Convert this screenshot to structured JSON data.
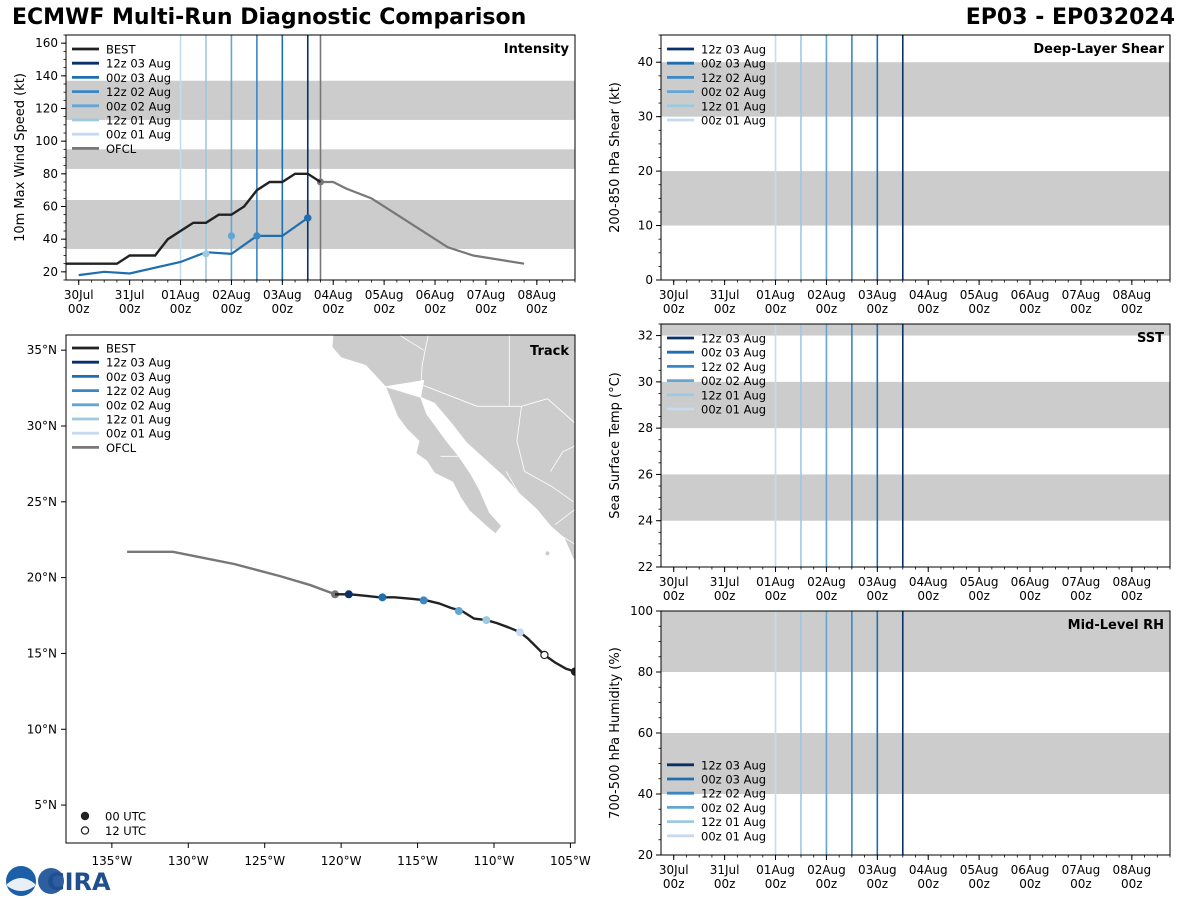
{
  "header": {
    "title": "ECMWF Multi-Run Diagnostic Comparison",
    "storm": "EP03 - EP032024"
  },
  "logo": {
    "text": "CIRA"
  },
  "time_axis": {
    "ticks": [
      {
        "day": 0,
        "label": "30Jul"
      },
      {
        "day": 1,
        "label": "31Jul"
      },
      {
        "day": 2,
        "label": "01Aug"
      },
      {
        "day": 3,
        "label": "02Aug"
      },
      {
        "day": 4,
        "label": "03Aug"
      },
      {
        "day": 5,
        "label": "04Aug"
      },
      {
        "day": 6,
        "label": "05Aug"
      },
      {
        "day": 7,
        "label": "06Aug"
      },
      {
        "day": 8,
        "label": "07Aug"
      },
      {
        "day": 9,
        "label": "08Aug"
      }
    ],
    "hour_label": "00z",
    "range_days": [
      -0.25,
      9.75
    ],
    "day0": "30Jul 00z"
  },
  "runs": [
    {
      "name": "12z 03 Aug",
      "init_day": 4.5,
      "color": "#08306b"
    },
    {
      "name": "00z 03 Aug",
      "init_day": 4.0,
      "color": "#1f6fb0"
    },
    {
      "name": "12z 02 Aug",
      "init_day": 3.5,
      "color": "#3a87c4"
    },
    {
      "name": "00z 02 Aug",
      "init_day": 3.0,
      "color": "#62a6d6"
    },
    {
      "name": "12z 01 Aug",
      "init_day": 2.5,
      "color": "#9ecae1"
    },
    {
      "name": "00z 01 Aug",
      "init_day": 2.0,
      "color": "#c6dbef"
    }
  ],
  "best_label": "BEST",
  "ofcl_label": "OFCL",
  "chart_data": [
    {
      "id": "intensity",
      "type": "line",
      "title": "Intensity",
      "ylabel": "10m Max Wind Speed (kt)",
      "ylim": [
        15,
        165
      ],
      "yticks": [
        20,
        40,
        60,
        80,
        100,
        120,
        140,
        160
      ],
      "shading": [
        [
          34,
          64
        ],
        [
          83,
          95
        ],
        [
          113,
          137
        ]
      ],
      "best": {
        "x": [
          -0.25,
          0.75,
          1.0,
          1.5,
          1.75,
          2.0,
          2.25,
          2.5,
          2.75,
          3.0,
          3.25,
          3.5,
          3.75,
          4.0,
          4.25,
          4.5,
          4.75
        ],
        "y": [
          25,
          25,
          30,
          30,
          40,
          45,
          50,
          50,
          55,
          55,
          60,
          70,
          75,
          75,
          80,
          80,
          75
        ]
      },
      "run_tracks": [
        {
          "run": "12z 03 Aug",
          "x": [
            4.5
          ],
          "y": [
            53
          ]
        },
        {
          "run": "00z 03 Aug",
          "x": [
            0.0,
            0.5,
            1.0,
            2.0,
            2.5,
            3.0,
            3.5,
            4.0,
            4.5
          ],
          "y": [
            18,
            20,
            19,
            26,
            32,
            31,
            42,
            42,
            53
          ]
        },
        {
          "run": "12z 02 Aug",
          "x": [
            3.5
          ],
          "y": [
            42
          ]
        },
        {
          "run": "00z 02 Aug",
          "x": [
            3.0
          ],
          "y": [
            42
          ]
        },
        {
          "run": "12z 01 Aug",
          "x": [
            2.5
          ],
          "y": [
            31
          ]
        }
      ],
      "ofcl": {
        "x": [
          4.75,
          5.0,
          5.25,
          5.75,
          7.25,
          7.75,
          8.75
        ],
        "y": [
          75,
          75,
          71,
          65,
          35,
          30,
          25
        ]
      },
      "ofcl_init_day": 4.75,
      "legend": "top-left"
    },
    {
      "id": "shear",
      "type": "line",
      "title": "Deep-Layer Shear",
      "ylabel": "200-850 hPa Shear (kt)",
      "ylim": [
        0,
        45
      ],
      "yticks": [
        0,
        10,
        20,
        30,
        40
      ],
      "shading": [
        [
          10,
          20
        ],
        [
          30,
          40
        ]
      ],
      "legend": "top-left"
    },
    {
      "id": "sst",
      "type": "line",
      "title": "SST",
      "ylabel": "Sea Surface Temp (°C)",
      "ylim": [
        22,
        32.5
      ],
      "yticks": [
        22,
        24,
        26,
        28,
        30,
        32
      ],
      "shading": [
        [
          24,
          26
        ],
        [
          28,
          30
        ],
        [
          32,
          33
        ]
      ],
      "legend": "top-left"
    },
    {
      "id": "rh",
      "type": "line",
      "title": "Mid-Level RH",
      "ylabel": "700-500 hPa Humidity (%)",
      "ylim": [
        20,
        100
      ],
      "yticks": [
        20,
        40,
        60,
        80,
        100
      ],
      "shading": [
        [
          40,
          60
        ],
        [
          80,
          100
        ]
      ],
      "legend": "bottom-left"
    },
    {
      "id": "track",
      "type": "scatter",
      "title": "Track",
      "lon_range": [
        -138,
        -104.7
      ],
      "lat_range": [
        2.5,
        36
      ],
      "xticks": [
        {
          "v": -135,
          "label": "135°W"
        },
        {
          "v": -130,
          "label": "130°W"
        },
        {
          "v": -125,
          "label": "125°W"
        },
        {
          "v": -120,
          "label": "120°W"
        },
        {
          "v": -115,
          "label": "115°W"
        },
        {
          "v": -110,
          "label": "110°W"
        },
        {
          "v": -105,
          "label": "105°W"
        }
      ],
      "yticks": [
        {
          "v": 5,
          "label": "5°N"
        },
        {
          "v": 10,
          "label": "10°N"
        },
        {
          "v": 15,
          "label": "15°N"
        },
        {
          "v": 20,
          "label": "20°N"
        },
        {
          "v": 25,
          "label": "25°N"
        },
        {
          "v": 30,
          "label": "30°N"
        },
        {
          "v": 35,
          "label": "35°N"
        }
      ],
      "best": {
        "lon": [
          -104.7,
          -105.3,
          -106.0,
          -106.7,
          -107.3,
          -107.8,
          -108.3,
          -109.0,
          -109.8,
          -110.5,
          -111.3,
          -112.1,
          -112.8,
          -113.6,
          -114.4,
          -115.3,
          -116.5,
          -117.5,
          -118.4,
          -119.4,
          -120.4
        ],
        "lat": [
          13.8,
          14.0,
          14.4,
          14.9,
          15.5,
          16.0,
          16.4,
          16.7,
          17.0,
          17.2,
          17.3,
          17.8,
          18.0,
          18.3,
          18.5,
          18.6,
          18.7,
          18.7,
          18.8,
          18.9,
          18.9
        ]
      },
      "best_markers": [
        {
          "lon": -104.7,
          "lat": 13.8,
          "time": "00 UTC"
        },
        {
          "lon": -106.7,
          "lat": 14.9,
          "time": "12 UTC"
        }
      ],
      "run_points": [
        {
          "run": "12z 03 Aug",
          "lon": -119.5,
          "lat": 18.9
        },
        {
          "run": "00z 03 Aug",
          "lon": -117.3,
          "lat": 18.7
        },
        {
          "run": "12z 02 Aug",
          "lon": -114.6,
          "lat": 18.5
        },
        {
          "run": "00z 02 Aug",
          "lon": -112.3,
          "lat": 17.8
        },
        {
          "run": "12z 01 Aug",
          "lon": -110.5,
          "lat": 17.2
        },
        {
          "run": "00z 01 Aug",
          "lon": -108.3,
          "lat": 16.4
        }
      ],
      "ofcl": {
        "lon": [
          -120.4,
          -122.0,
          -124.0,
          -127.0,
          -129.0,
          -131.0,
          -134.0
        ],
        "lat": [
          18.9,
          19.5,
          20.1,
          20.9,
          21.3,
          21.7,
          21.7
        ]
      },
      "marker_legend": [
        "00 UTC",
        "12 UTC"
      ],
      "legend": "top-left"
    }
  ]
}
